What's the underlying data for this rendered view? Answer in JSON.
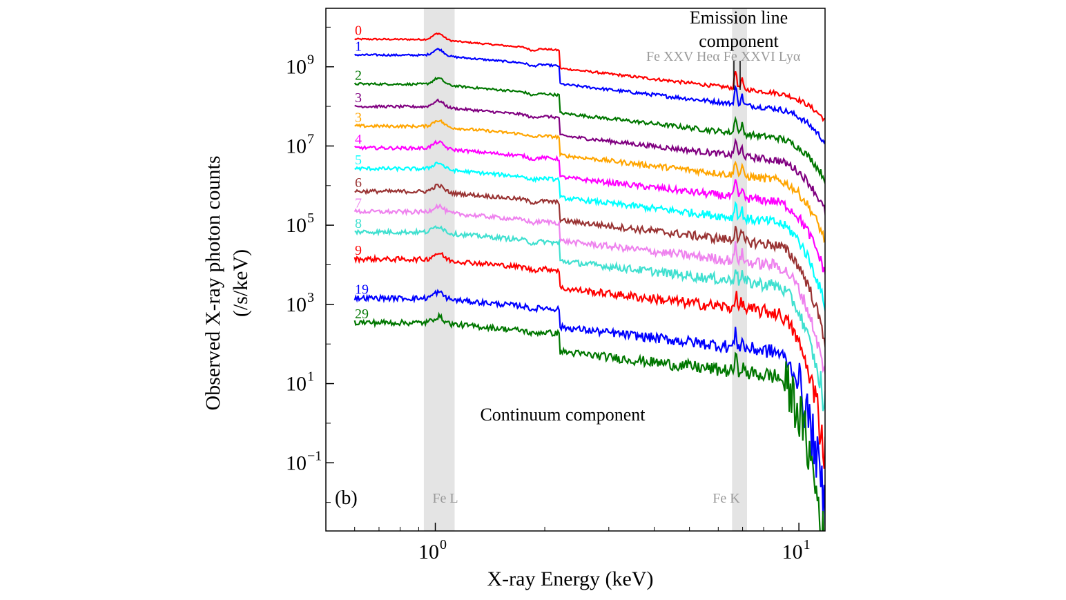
{
  "chart_data": {
    "type": "line",
    "panel_label": "(b)",
    "xlabel": "X-ray Energy (keV)",
    "ylabel_line1": "Observed X-ray photon counts",
    "ylabel_line2": "(/s/keV)",
    "x_scale": "log",
    "y_scale": "log",
    "xlim": [
      0.5,
      11.8
    ],
    "ylim": [
      0.0019,
      30000000000
    ],
    "x_ticks": [
      {
        "value": 1,
        "base": "10",
        "exp": "0"
      },
      {
        "value": 10,
        "base": "10",
        "exp": "1"
      }
    ],
    "y_ticks": [
      {
        "value": 1000000000.0,
        "base": "10",
        "exp": "9"
      },
      {
        "value": 10000000.0,
        "base": "10",
        "exp": "7"
      },
      {
        "value": 100000.0,
        "base": "10",
        "exp": "5"
      },
      {
        "value": 1000.0,
        "base": "10",
        "exp": "3"
      },
      {
        "value": 10.0,
        "base": "10",
        "exp": "1"
      },
      {
        "value": 0.1,
        "base": "10",
        "exp": "−1"
      }
    ],
    "bands": [
      {
        "name": "Fe L",
        "label": "Fe L",
        "x_range": [
          0.93,
          1.13
        ]
      },
      {
        "name": "Fe K",
        "label": "Fe K",
        "x_range": [
          6.55,
          7.2
        ]
      }
    ],
    "line_markers": [
      {
        "name": "Fe XXV Hea",
        "energy": 6.7
      },
      {
        "name": "Fe XXVI Lya",
        "energy": 6.97
      }
    ],
    "line_marker_label": "Fe XXV Heα  Fe XXVI Lyα",
    "annotations": {
      "emission_line_1": "Emission line",
      "emission_line_2": "component",
      "continuum": "Continuum component"
    },
    "series": [
      {
        "name": "0",
        "color": "#ff0000",
        "y_at_0_6keV": 5000000000
      },
      {
        "name": "1",
        "color": "#0000ff",
        "y_at_0_6keV": 2000000000
      },
      {
        "name": "2",
        "color": "#007700",
        "y_at_0_6keV": 370000000
      },
      {
        "name": "3",
        "color": "#800080",
        "y_at_0_6keV": 100000000
      },
      {
        "name": "3",
        "color": "#ffa500",
        "y_at_0_6keV": 32000000
      },
      {
        "name": "4",
        "color": "#ff00ff",
        "y_at_0_6keV": 9000000
      },
      {
        "name": "5",
        "color": "#00ffff",
        "y_at_0_6keV": 2700000
      },
      {
        "name": "6",
        "color": "#993333",
        "y_at_0_6keV": 720000
      },
      {
        "name": "7",
        "color": "#ee82ee",
        "y_at_0_6keV": 220000
      },
      {
        "name": "8",
        "color": "#40e0d0",
        "y_at_0_6keV": 68000
      },
      {
        "name": "9",
        "color": "#ff0000",
        "y_at_0_6keV": 14000
      },
      {
        "name": "19",
        "color": "#0000ff",
        "y_at_0_6keV": 1450
      },
      {
        "name": "29",
        "color": "#007700",
        "y_at_0_6keV": 350
      }
    ]
  }
}
